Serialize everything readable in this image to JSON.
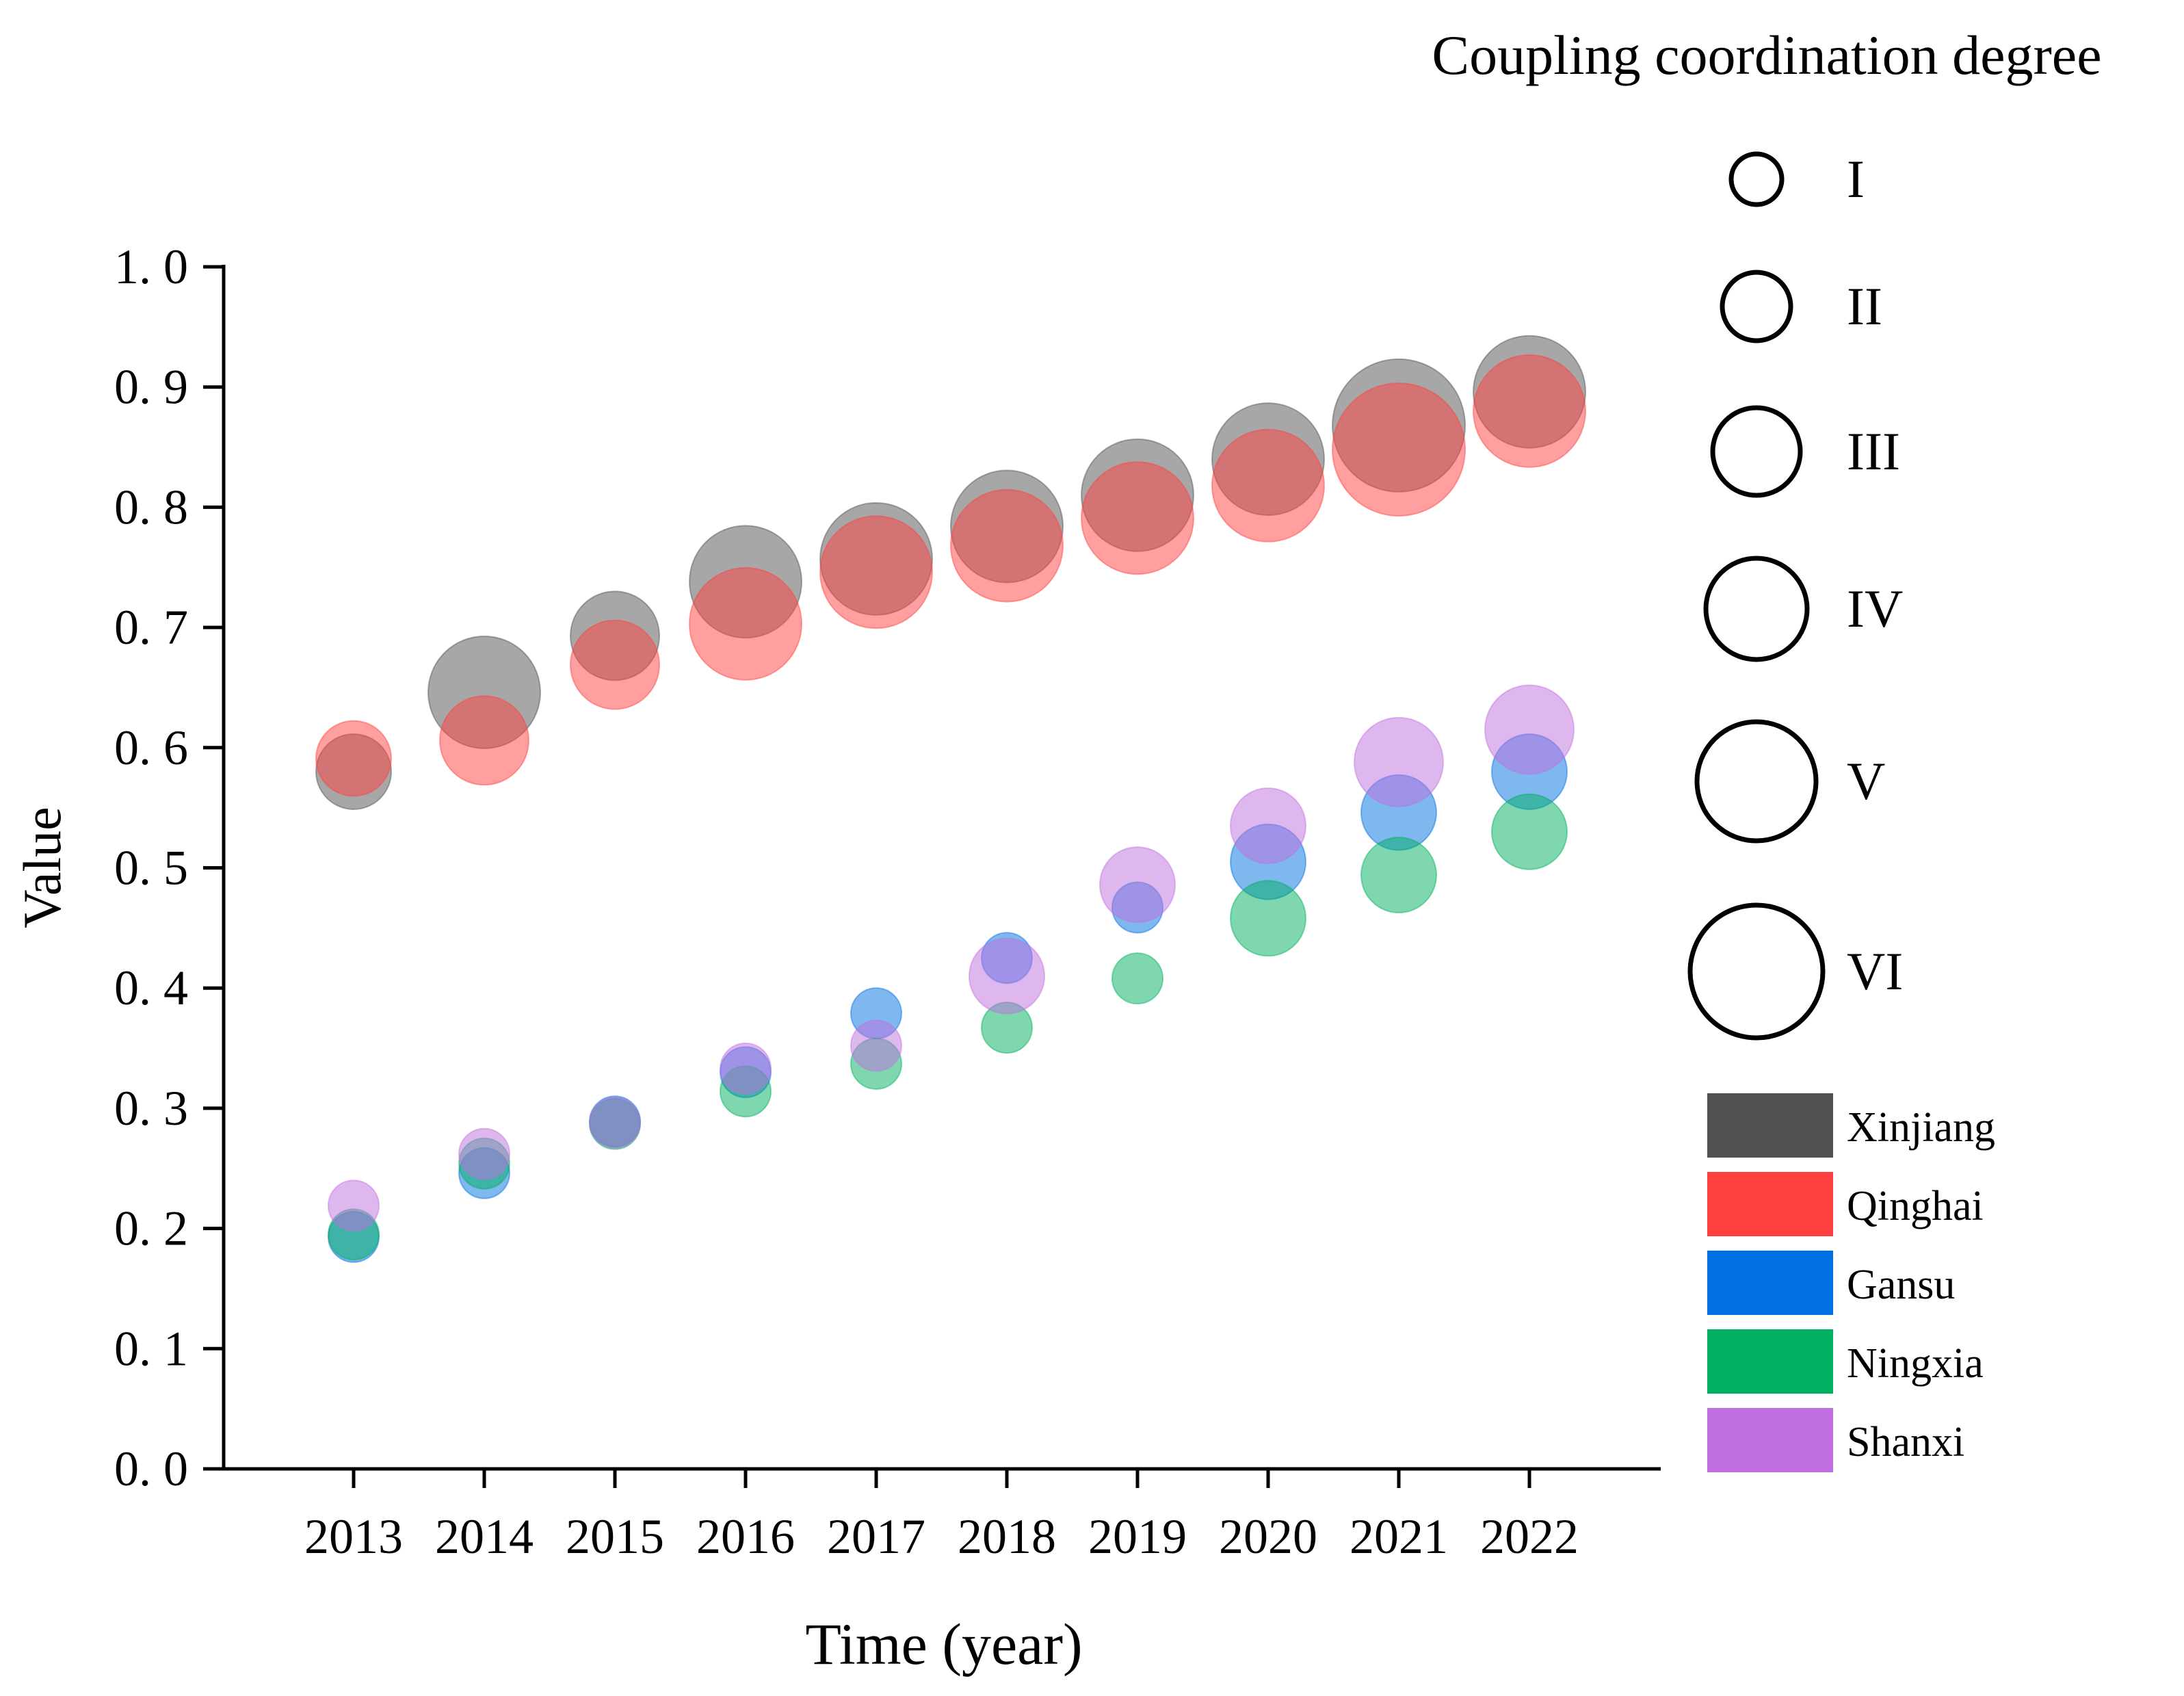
{
  "chart_data": {
    "type": "scatter",
    "subtype": "bubble",
    "title": "",
    "xlabel": "Time (year)",
    "ylabel": "Value",
    "x": [
      "2013",
      "2014",
      "2015",
      "2016",
      "2017",
      "2018",
      "2019",
      "2020",
      "2021",
      "2022"
    ],
    "ylim": [
      0,
      1
    ],
    "yticks": [
      "0. 0",
      "0. 1",
      "0. 2",
      "0. 3",
      "0. 4",
      "0. 5",
      "0. 6",
      "0. 7",
      "0. 8",
      "0. 9",
      "1. 0"
    ],
    "grid": false,
    "series": [
      {
        "name": "Xinjiang",
        "color": "#505050",
        "values": [
          0.58,
          0.646,
          0.693,
          0.738,
          0.757,
          0.784,
          0.81,
          0.84,
          0.868,
          0.896
        ],
        "levels": [
          2,
          4,
          3,
          4,
          4,
          4,
          4,
          4,
          5,
          4
        ]
      },
      {
        "name": "Qinghai",
        "color": "#ff4040",
        "values": [
          0.591,
          0.606,
          0.669,
          0.703,
          0.746,
          0.768,
          0.791,
          0.818,
          0.848,
          0.88
        ],
        "levels": [
          2,
          3,
          3,
          4,
          4,
          4,
          4,
          4,
          5,
          4
        ]
      },
      {
        "name": "Gansu",
        "color": "#0070e0",
        "values": [
          0.193,
          0.246,
          0.289,
          0.33,
          0.379,
          0.425,
          0.467,
          0.505,
          0.546,
          0.58
        ],
        "levels": [
          1,
          1,
          1,
          1,
          1,
          1,
          1,
          2,
          2,
          2
        ]
      },
      {
        "name": "Ningxia",
        "color": "#00b060",
        "values": [
          0.195,
          0.254,
          0.287,
          0.314,
          0.337,
          0.367,
          0.408,
          0.458,
          0.494,
          0.53
        ],
        "levels": [
          1,
          1,
          1,
          1,
          1,
          1,
          1,
          2,
          2,
          2
        ]
      },
      {
        "name": "Shanxi",
        "color": "#c070e0",
        "values": [
          0.219,
          0.262,
          0.288,
          0.333,
          0.352,
          0.41,
          0.486,
          0.535,
          0.588,
          0.615
        ],
        "levels": [
          1,
          1,
          1,
          1,
          1,
          2,
          2,
          2,
          3,
          3
        ]
      }
    ],
    "size_legend": {
      "title": "Coupling coordination degree",
      "levels": [
        "I",
        "II",
        "III",
        "IV",
        "V",
        "VI"
      ]
    },
    "legend_position": "right"
  }
}
